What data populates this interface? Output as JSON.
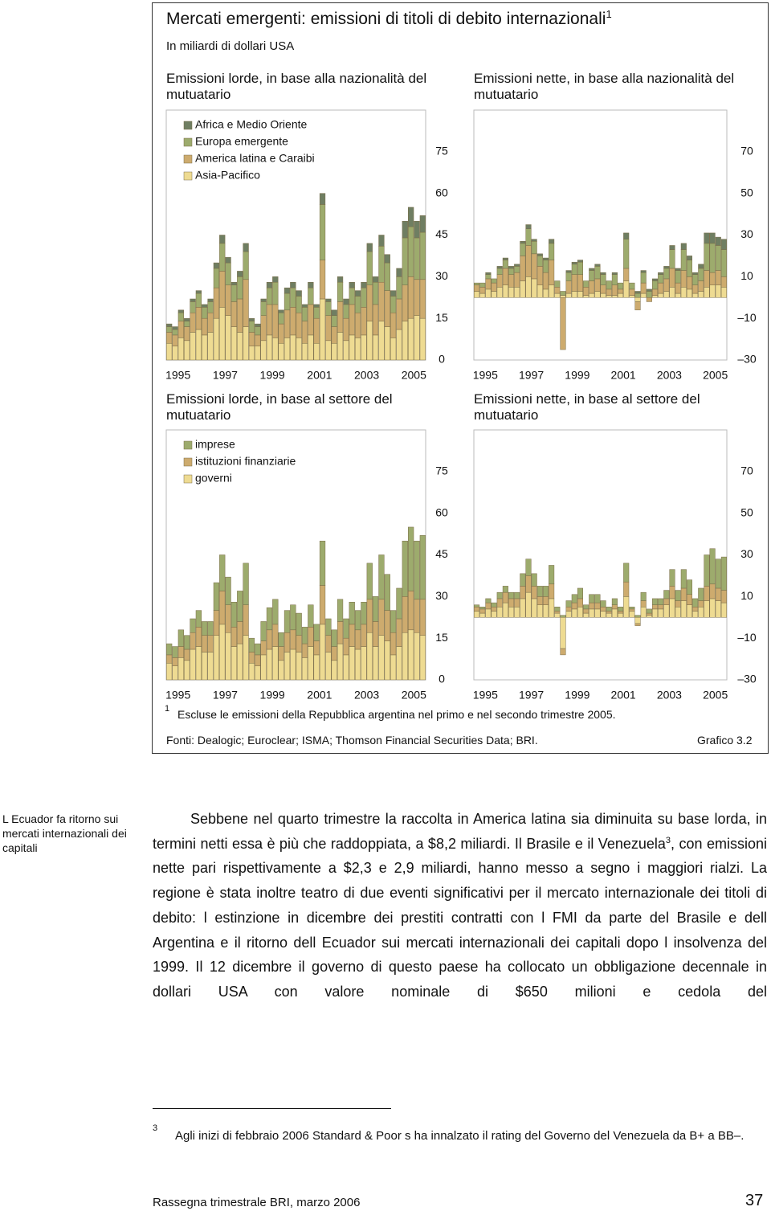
{
  "figure": {
    "title": "Mercati emergenti: emissioni di titoli di debito internazionali",
    "title_note": "1",
    "subtitle": "In miliardi di dollari USA",
    "footnote_mark": "1",
    "footnote": "Escluse le emissioni della Repubblica argentina nel primo e nel secondo trimestre 2005.",
    "sources": "Fonti: Dealogic; Euroclear; ISMA; Thomson Financial Securities Data; BRI.",
    "label": "Grafico 3.2"
  },
  "chart_data": [
    {
      "type": "bar",
      "stacked": true,
      "title": "Emissioni lorde, in base alla nazionalità del mutuatario",
      "categories": [
        "1995",
        null,
        null,
        null,
        null,
        null,
        null,
        null,
        "1997",
        null,
        null,
        null,
        null,
        null,
        null,
        null,
        "1999",
        null,
        null,
        null,
        null,
        null,
        null,
        null,
        "2001",
        null,
        null,
        null,
        null,
        null,
        null,
        null,
        "2003",
        null,
        null,
        null,
        null,
        null,
        null,
        null,
        "2005",
        null,
        null,
        null
      ],
      "legend": "upper left",
      "series": [
        {
          "name": "Africa e Medio Oriente",
          "color": "#6f7e62",
          "values": [
            1,
            1,
            1,
            1,
            1,
            1,
            1,
            1,
            2,
            3,
            2,
            1,
            2,
            3,
            1,
            1,
            1,
            2,
            2,
            1,
            2,
            2,
            2,
            1,
            2,
            1,
            4,
            1,
            2,
            2,
            2,
            2,
            2,
            2,
            3,
            2,
            4,
            3,
            2,
            3,
            6,
            7,
            6,
            6
          ]
        },
        {
          "name": "Europa emergente",
          "color": "#9dab6d",
          "values": [
            2,
            2,
            3,
            2,
            4,
            5,
            4,
            4,
            7,
            10,
            8,
            6,
            8,
            10,
            4,
            3,
            5,
            6,
            8,
            4,
            6,
            7,
            6,
            5,
            6,
            4,
            20,
            5,
            4,
            7,
            5,
            6,
            6,
            7,
            12,
            8,
            13,
            10,
            6,
            8,
            17,
            18,
            15,
            17
          ]
        },
        {
          "name": "America latina e Caraibi",
          "color": "#cdab6e",
          "values": [
            4,
            4,
            6,
            5,
            7,
            8,
            6,
            7,
            11,
            13,
            11,
            9,
            12,
            17,
            5,
            4,
            9,
            11,
            12,
            7,
            10,
            10,
            9,
            8,
            11,
            9,
            14,
            9,
            6,
            11,
            8,
            11,
            9,
            10,
            13,
            11,
            14,
            13,
            9,
            11,
            13,
            15,
            13,
            14
          ]
        },
        {
          "name": "Asia-Pacifico",
          "color": "#eedb92",
          "values": [
            6,
            5,
            8,
            7,
            10,
            11,
            9,
            10,
            15,
            19,
            16,
            12,
            10,
            12,
            5,
            5,
            7,
            9,
            8,
            6,
            8,
            9,
            8,
            6,
            9,
            6,
            22,
            7,
            6,
            10,
            7,
            9,
            8,
            9,
            14,
            9,
            14,
            12,
            8,
            11,
            14,
            15,
            16,
            15
          ]
        }
      ],
      "ylim": [
        0,
        90
      ],
      "yticks": [
        0,
        15,
        30,
        45,
        60,
        75
      ]
    },
    {
      "type": "bar",
      "stacked": true,
      "title": "Emissioni nette, in base alla nazionalità del mutuatario",
      "categories": [
        "1995",
        null,
        null,
        null,
        null,
        null,
        null,
        null,
        "1997",
        null,
        null,
        null,
        null,
        null,
        null,
        null,
        "1999",
        null,
        null,
        null,
        null,
        null,
        null,
        null,
        "2001",
        null,
        null,
        null,
        null,
        null,
        null,
        null,
        "2003",
        null,
        null,
        null,
        null,
        null,
        null,
        null,
        "2005",
        null,
        null,
        null
      ],
      "series": [
        {
          "color": "#6f7e62",
          "values": [
            0,
            0,
            1,
            0,
            1,
            1,
            1,
            1,
            1,
            2,
            1,
            1,
            1,
            2,
            0,
            0,
            1,
            1,
            1,
            0,
            1,
            1,
            1,
            0,
            1,
            0,
            3,
            0,
            1,
            1,
            1,
            1,
            1,
            1,
            2,
            1,
            3,
            2,
            1,
            2,
            5,
            5,
            4,
            5
          ]
        },
        {
          "color": "#9dab6d",
          "values": [
            1,
            2,
            2,
            2,
            3,
            4,
            3,
            3,
            6,
            8,
            6,
            5,
            6,
            8,
            3,
            2,
            4,
            5,
            6,
            3,
            5,
            6,
            5,
            4,
            5,
            3,
            14,
            3,
            2,
            5,
            3,
            4,
            4,
            5,
            9,
            6,
            10,
            8,
            5,
            6,
            13,
            14,
            12,
            13
          ]
        },
        {
          "color": "#cdab6e",
          "values": [
            3,
            3,
            5,
            4,
            6,
            8,
            6,
            7,
            12,
            15,
            12,
            9,
            8,
            12,
            3,
            -25,
            6,
            8,
            8,
            4,
            6,
            6,
            4,
            3,
            5,
            2,
            6,
            3,
            -4,
            5,
            -2,
            3,
            5,
            6,
            9,
            5,
            8,
            6,
            4,
            5,
            8,
            6,
            7,
            5
          ]
        },
        {
          "color": "#eedb92",
          "values": [
            3,
            2,
            4,
            3,
            5,
            6,
            5,
            5,
            8,
            10,
            9,
            6,
            4,
            6,
            2,
            1,
            2,
            3,
            3,
            1,
            2,
            3,
            2,
            1,
            1,
            2,
            8,
            1,
            -2,
            2,
            0,
            1,
            2,
            3,
            5,
            2,
            5,
            4,
            2,
            3,
            5,
            6,
            6,
            5
          ]
        }
      ],
      "ylim": [
        -30,
        90
      ],
      "yticks": [
        {
          "value": -30,
          "label": "–30"
        },
        {
          "value": -10,
          "label": "–10"
        },
        10,
        30,
        50,
        70
      ]
    },
    {
      "type": "bar",
      "stacked": true,
      "title": "Emissioni lorde, in base al settore del mutuatario",
      "categories": [
        "1995",
        null,
        null,
        null,
        null,
        null,
        null,
        null,
        "1997",
        null,
        null,
        null,
        null,
        null,
        null,
        null,
        "1999",
        null,
        null,
        null,
        null,
        null,
        null,
        null,
        "2001",
        null,
        null,
        null,
        null,
        null,
        null,
        null,
        "2003",
        null,
        null,
        null,
        null,
        null,
        null,
        null,
        "2005",
        null,
        null,
        null
      ],
      "legend": "upper left",
      "series": [
        {
          "name": "imprese",
          "color": "#9dab6d",
          "values": [
            4,
            4,
            6,
            5,
            5,
            6,
            5,
            5,
            10,
            13,
            10,
            9,
            11,
            15,
            5,
            4,
            7,
            8,
            9,
            5,
            8,
            9,
            8,
            6,
            8,
            6,
            16,
            6,
            6,
            8,
            7,
            8,
            7,
            8,
            13,
            9,
            16,
            13,
            8,
            11,
            20,
            23,
            21,
            23
          ]
        },
        {
          "name": "istituzioni finanziarie",
          "color": "#cdab6e",
          "values": [
            3,
            3,
            4,
            4,
            6,
            7,
            6,
            6,
            9,
            12,
            10,
            7,
            8,
            11,
            4,
            4,
            5,
            7,
            8,
            5,
            7,
            7,
            6,
            5,
            7,
            5,
            14,
            6,
            5,
            8,
            6,
            8,
            7,
            8,
            12,
            9,
            13,
            11,
            8,
            10,
            13,
            14,
            12,
            13
          ]
        },
        {
          "name": "governi",
          "color": "#eedb92",
          "values": [
            6,
            5,
            8,
            7,
            11,
            12,
            10,
            10,
            16,
            20,
            17,
            12,
            13,
            16,
            6,
            5,
            9,
            11,
            12,
            7,
            10,
            11,
            10,
            8,
            12,
            9,
            20,
            10,
            7,
            13,
            9,
            12,
            11,
            12,
            17,
            12,
            16,
            14,
            9,
            12,
            17,
            18,
            17,
            16
          ]
        }
      ],
      "ylim": [
        0,
        90
      ],
      "yticks": [
        0,
        15,
        30,
        45,
        60,
        75
      ]
    },
    {
      "type": "bar",
      "stacked": true,
      "title": "Emissioni nette, in base al settore del mutuatario",
      "categories": [
        "1995",
        null,
        null,
        null,
        null,
        null,
        null,
        null,
        "1997",
        null,
        null,
        null,
        null,
        null,
        null,
        null,
        "1999",
        null,
        null,
        null,
        null,
        null,
        null,
        null,
        "2001",
        null,
        null,
        null,
        null,
        null,
        null,
        null,
        "2003",
        null,
        null,
        null,
        null,
        null,
        null,
        null,
        "2005",
        null,
        null,
        null
      ],
      "series": [
        {
          "color": "#9dab6d",
          "values": [
            1,
            1,
            2,
            2,
            3,
            3,
            3,
            3,
            6,
            8,
            6,
            5,
            5,
            9,
            2,
            1,
            3,
            4,
            5,
            2,
            4,
            4,
            3,
            2,
            3,
            2,
            9,
            1,
            1,
            4,
            2,
            3,
            3,
            4,
            8,
            5,
            9,
            7,
            4,
            6,
            15,
            17,
            14,
            16
          ]
        },
        {
          "color": "#cdab6e",
          "values": [
            2,
            2,
            3,
            2,
            4,
            5,
            4,
            4,
            6,
            8,
            6,
            4,
            4,
            7,
            1,
            -3,
            2,
            3,
            4,
            2,
            3,
            3,
            2,
            1,
            2,
            1,
            7,
            1,
            -1,
            3,
            1,
            2,
            2,
            3,
            6,
            3,
            6,
            5,
            2,
            3,
            7,
            7,
            6,
            6
          ]
        },
        {
          "color": "#eedb92",
          "values": [
            3,
            2,
            4,
            3,
            5,
            7,
            5,
            5,
            9,
            12,
            9,
            6,
            6,
            9,
            2,
            -15,
            3,
            4,
            5,
            2,
            4,
            4,
            3,
            2,
            4,
            2,
            10,
            3,
            -3,
            5,
            1,
            4,
            4,
            6,
            9,
            5,
            8,
            6,
            3,
            5,
            8,
            9,
            8,
            7
          ]
        }
      ],
      "ylim": [
        -30,
        90
      ],
      "yticks": [
        {
          "value": -30,
          "label": "–30"
        },
        {
          "value": -10,
          "label": "–10"
        },
        10,
        30,
        50,
        70
      ]
    }
  ],
  "sidebar": "L Ecuador fa ritorno sui mercati internazionali dei capitali",
  "text": {
    "part1": "Sebbene nel quarto trimestre la raccolta in America latina sia diminuita su base lorda, in termini netti essa è più che raddoppiata, a $8,2 miliardi. Il Brasile e il Venezuela",
    "note_mark": "3",
    "part2": ", con emissioni nette pari rispettivamente a $2,3 e 2,9 miliardi, hanno messo a segno i maggiori rialzi. La regione è stata inoltre teatro di due eventi significativi per il mercato internazionale dei titoli di debito: l estinzione in dicembre dei prestiti contratti con l FMI da parte del Brasile e dell Argentina e il ritorno dell Ecuador sui mercati internazionali dei capitali dopo l insolvenza del 1999. Il 12 dicembre il governo di questo paese ha collocato un obbligazione decennale in dollari USA con valore nominale di $650 milioni e cedola del"
  },
  "footnote": {
    "mark": "3",
    "text": "Agli inizi di febbraio 2006 Standard & Poor s ha innalzato il rating del Governo del Venezuela da B+ a BB–."
  },
  "footer": {
    "title": "Rassegna trimestrale BRI, marzo 2006",
    "page": "37"
  }
}
